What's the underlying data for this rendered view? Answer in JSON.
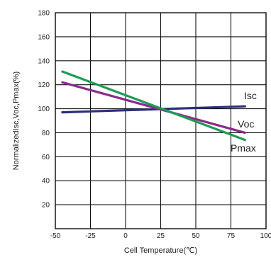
{
  "chart_data": {
    "type": "line",
    "title": "",
    "xlabel": "Cell Temperature(℃)",
    "ylabel": "NormalizedIsc,Voc,Pmax(%)",
    "xlim": [
      -50,
      100
    ],
    "ylim": [
      0,
      180
    ],
    "x_ticks": [
      -50,
      -25,
      0,
      25,
      50,
      75,
      100
    ],
    "y_ticks": [
      20,
      40,
      60,
      80,
      100,
      120,
      140,
      160,
      180
    ],
    "grid": true,
    "series": [
      {
        "name": "Isc",
        "color": "#2b2d7a",
        "x": [
          -45,
          85
        ],
        "y": [
          97,
          102
        ]
      },
      {
        "name": "Voc",
        "color": "#8a2a8c",
        "x": [
          -45,
          85
        ],
        "y": [
          122,
          80
        ]
      },
      {
        "name": "Pmax",
        "color": "#1f9a57",
        "x": [
          -45,
          85
        ],
        "y": [
          131,
          74
        ]
      }
    ]
  }
}
